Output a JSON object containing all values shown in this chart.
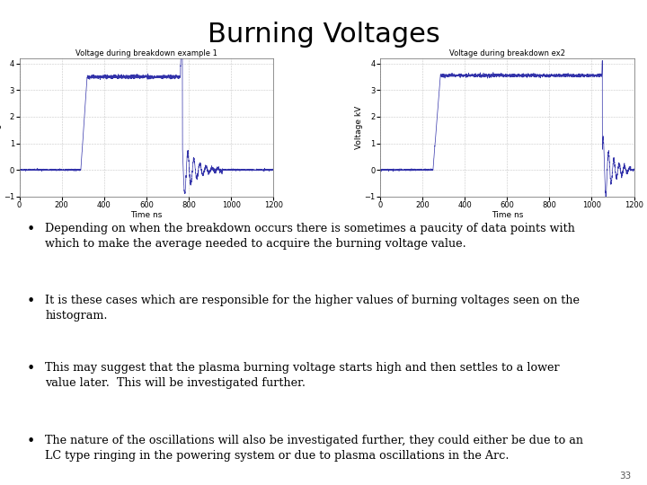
{
  "title": "Burning Voltages",
  "title_fontsize": 22,
  "title_font": "DejaVu Sans",
  "plot1_title": "Voltage during breakdown example 1",
  "plot2_title": "Voltage during breakdown ex2",
  "xlabel": "Time ns",
  "ylabel": "Voltage kV",
  "bullet_points": [
    "Depending on when the breakdown occurs there is sometimes a paucity of data points with\nwhich to make the average needed to acquire the burning voltage value.",
    "It is these cases which are responsible for the higher values of burning voltages seen on the\nhistogram.",
    "This may suggest that the plasma burning voltage starts high and then settles to a lower\nvalue later.  This will be investigated further.",
    "The nature of the oscillations will also be investigated further, they could either be due to an\nLC type ringing in the powering system or due to plasma oscillations in the Arc."
  ],
  "page_number": "33",
  "line_color": "#3333aa",
  "bg_color": "#ffffff",
  "text_color": "#000000",
  "bullet_fontsize": 9.2,
  "bullet_font": "DejaVu Serif"
}
